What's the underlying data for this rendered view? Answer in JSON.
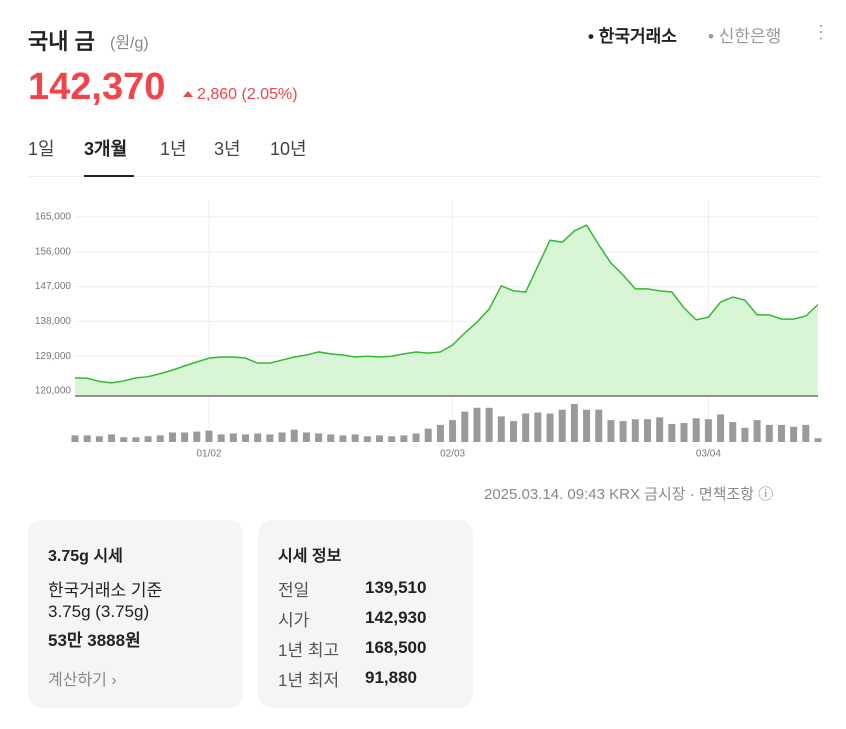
{
  "header": {
    "title": "국내 금",
    "unit": "(원/g)",
    "sources": [
      "한국거래소",
      "신한은행"
    ],
    "price": "142,370",
    "change": "2,860",
    "change_rate": "(2.05%)"
  },
  "tabs": [
    "1일",
    "3개월",
    "1년",
    "3년",
    "10년"
  ],
  "chart_data": {
    "type": "line",
    "color": "#35b835",
    "fill": "#d8f5d5",
    "bar_color": "#9a9a9a",
    "categories": [
      null,
      null,
      null,
      null,
      null,
      null,
      null,
      null,
      null,
      null,
      null,
      "01/02",
      null,
      null,
      null,
      null,
      null,
      null,
      null,
      null,
      null,
      null,
      null,
      null,
      null,
      null,
      null,
      null,
      null,
      null,
      null,
      "02/03",
      null,
      null,
      null,
      null,
      null,
      null,
      null,
      null,
      null,
      null,
      null,
      null,
      null,
      null,
      null,
      null,
      null,
      null,
      null,
      null,
      "03/04",
      null,
      null,
      null,
      null,
      null,
      null,
      null,
      null,
      null
    ],
    "values": [
      123400,
      123300,
      122500,
      122100,
      122600,
      123400,
      123700,
      124500,
      125400,
      126500,
      127500,
      128500,
      128800,
      128800,
      128500,
      127200,
      127200,
      128000,
      128800,
      129300,
      130100,
      129600,
      129300,
      128800,
      129000,
      128800,
      129000,
      129600,
      130100,
      129800,
      130100,
      131900,
      135000,
      137800,
      141200,
      147200,
      145900,
      145600,
      152300,
      159000,
      158500,
      161400,
      162900,
      157800,
      153100,
      150000,
      146400,
      146400,
      145900,
      145600,
      141500,
      138400,
      139100,
      143000,
      144300,
      143500,
      139700,
      139700,
      138600,
      138600,
      139400,
      142370
    ],
    "volume": [
      7,
      7,
      6,
      8,
      5,
      5,
      6,
      7,
      10,
      10,
      11,
      12,
      8,
      9,
      8,
      9,
      8,
      10,
      13,
      10,
      9,
      8,
      7,
      8,
      6,
      7,
      6,
      7,
      9,
      14,
      18,
      23,
      32,
      36,
      36,
      27,
      22,
      30,
      31,
      30,
      34,
      40,
      34,
      34,
      23,
      22,
      24,
      24,
      26,
      19,
      20,
      25,
      24,
      29,
      21,
      15,
      23,
      18,
      18,
      16,
      18,
      4
    ],
    "ylim": [
      120000,
      169400
    ],
    "yticks": [
      {
        "value": 120000,
        "label": "120,000"
      },
      {
        "value": 129000,
        "label": "129,000"
      },
      {
        "value": 138000,
        "label": "138,000"
      },
      {
        "value": 147000,
        "label": "147,000"
      },
      {
        "value": 156000,
        "label": "156,000"
      },
      {
        "value": 165000,
        "label": "165,000"
      }
    ],
    "grid": true
  },
  "footer": {
    "timestamp": "2025.03.14. 09:43 KRX 금시장",
    "disclaimer": "면책조항"
  },
  "card1": {
    "title": "3.75g 시세",
    "basis": "한국거래소 기준",
    "weight": "3.75g (3.75g)",
    "price": "53만 3888원",
    "link": "계산하기"
  },
  "card2": {
    "title": "시세 정보",
    "rows": [
      [
        "전일",
        "139,510"
      ],
      [
        "시가",
        "142,930"
      ],
      [
        "1년 최고",
        "168,500"
      ],
      [
        "1년 최저",
        "91,880"
      ]
    ]
  }
}
